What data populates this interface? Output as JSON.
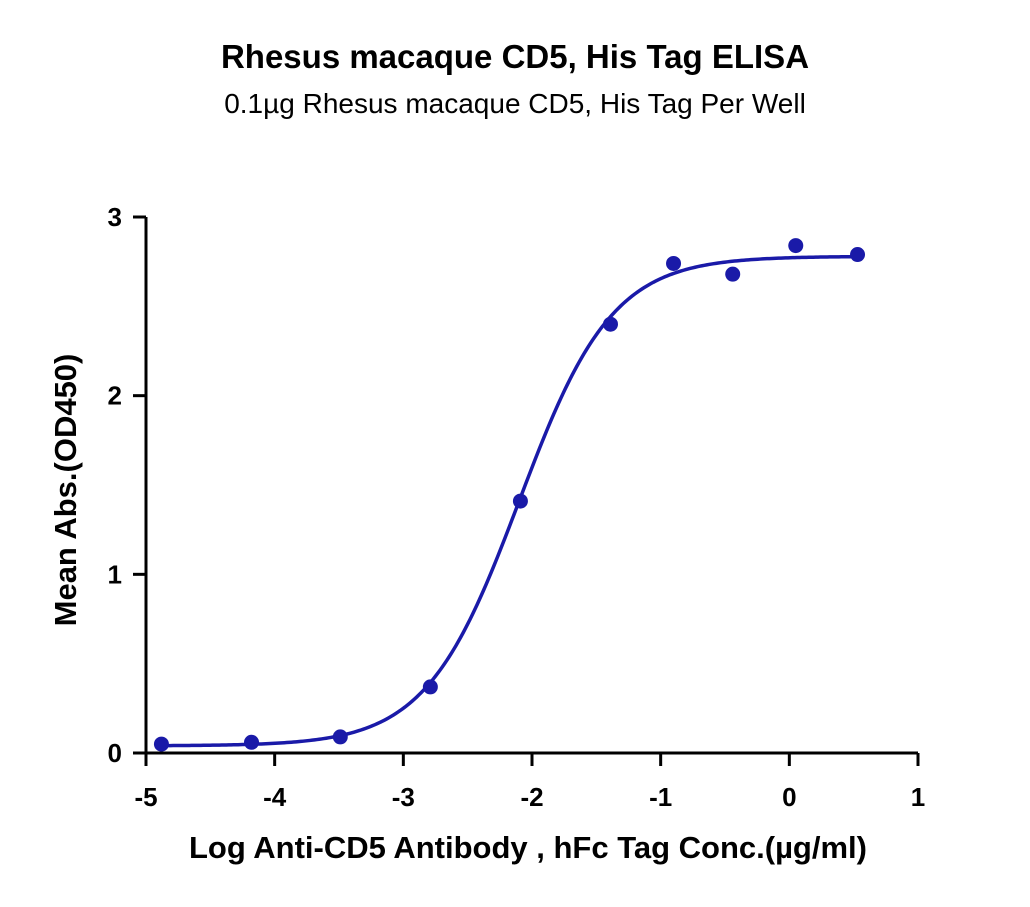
{
  "chart_data": {
    "type": "scatter",
    "title": "Rhesus macaque CD5, His Tag ELISA",
    "subtitle": "0.1µg Rhesus macaque CD5, His Tag Per Well",
    "xlabel": "Log Anti-CD5 Antibody , hFc Tag Conc.(µg/ml)",
    "ylabel": "Mean Abs.(OD450)",
    "xlim": [
      -5,
      1
    ],
    "ylim": [
      0,
      3
    ],
    "x_ticks": [
      "-5",
      "-4",
      "-3",
      "-2",
      "-1",
      "0",
      "1"
    ],
    "y_ticks": [
      "0",
      "1",
      "2",
      "3"
    ],
    "grid": false,
    "series": [
      {
        "x": [
          -4.88,
          -4.18,
          -3.49,
          -2.79,
          -2.09,
          -1.39,
          -0.9,
          -0.44,
          0.05,
          0.53
        ],
        "y": [
          0.05,
          0.06,
          0.09,
          0.37,
          1.41,
          2.4,
          2.74,
          2.68,
          2.84,
          2.79
        ],
        "fit": "4PL sigmoid",
        "fit_params": {
          "bottom": 0.04,
          "top": 2.78,
          "log_ec50": -2.1,
          "hill_slope": 1.2
        }
      }
    ],
    "colors": {
      "series": "#1a1aa8"
    }
  }
}
